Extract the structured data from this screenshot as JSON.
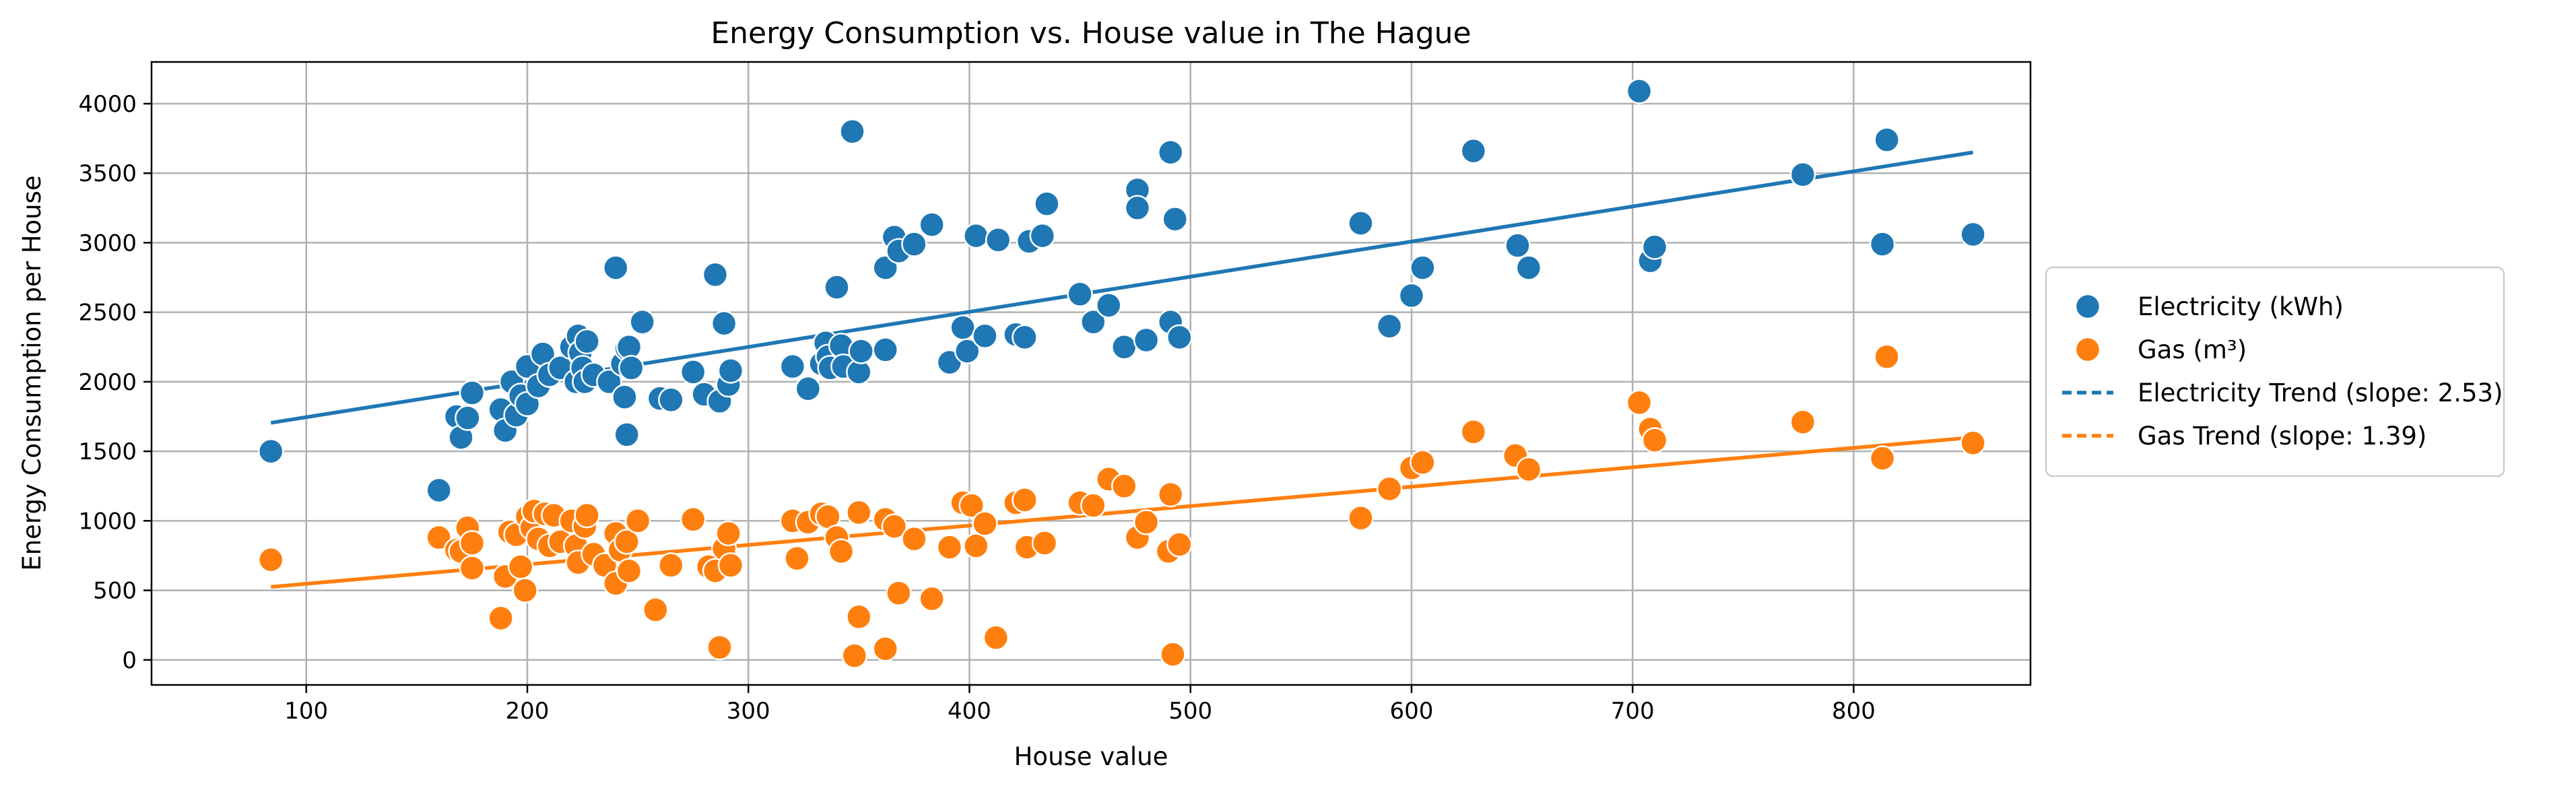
{
  "chart_data": {
    "type": "scatter",
    "title": "Energy Consumption vs. House value in The Hague",
    "xlabel": "House value",
    "ylabel": "Energy Consumption per House",
    "xlim": [
      30,
      880
    ],
    "ylim": [
      -180,
      4300
    ],
    "xticks": [
      100,
      200,
      300,
      400,
      500,
      600,
      700,
      800
    ],
    "yticks": [
      0,
      500,
      1000,
      1500,
      2000,
      2500,
      3000,
      3500,
      4000
    ],
    "grid": true,
    "legend_position": "center-right",
    "series": [
      {
        "name": "Electricity (kWh)",
        "kind": "scatter",
        "color": "#1f77b4",
        "points": [
          [
            84,
            1500
          ],
          [
            160,
            1220
          ],
          [
            168,
            1750
          ],
          [
            170,
            1600
          ],
          [
            173,
            1740
          ],
          [
            175,
            1920
          ],
          [
            188,
            1800
          ],
          [
            190,
            1650
          ],
          [
            193,
            2000
          ],
          [
            195,
            1760
          ],
          [
            197,
            1900
          ],
          [
            200,
            2110
          ],
          [
            200,
            1840
          ],
          [
            205,
            1970
          ],
          [
            207,
            2200
          ],
          [
            210,
            2050
          ],
          [
            215,
            2100
          ],
          [
            220,
            2250
          ],
          [
            222,
            2000
          ],
          [
            223,
            2330
          ],
          [
            224,
            2210
          ],
          [
            225,
            2100
          ],
          [
            226,
            2000
          ],
          [
            227,
            2290
          ],
          [
            230,
            2050
          ],
          [
            237,
            2000
          ],
          [
            240,
            2820
          ],
          [
            243,
            2130
          ],
          [
            244,
            1890
          ],
          [
            245,
            1620
          ],
          [
            245,
            2240
          ],
          [
            246,
            2250
          ],
          [
            247,
            2100
          ],
          [
            252,
            2430
          ],
          [
            260,
            1880
          ],
          [
            265,
            1870
          ],
          [
            275,
            2070
          ],
          [
            280,
            1910
          ],
          [
            285,
            2770
          ],
          [
            287,
            1860
          ],
          [
            289,
            2420
          ],
          [
            291,
            1980
          ],
          [
            292,
            2080
          ],
          [
            320,
            2110
          ],
          [
            327,
            1950
          ],
          [
            333,
            2130
          ],
          [
            335,
            2280
          ],
          [
            336,
            2180
          ],
          [
            337,
            2100
          ],
          [
            340,
            2680
          ],
          [
            342,
            2260
          ],
          [
            343,
            2110
          ],
          [
            347,
            3800
          ],
          [
            350,
            2070
          ],
          [
            351,
            2220
          ],
          [
            362,
            2230
          ],
          [
            362,
            2820
          ],
          [
            366,
            3040
          ],
          [
            368,
            2940
          ],
          [
            375,
            2990
          ],
          [
            383,
            3130
          ],
          [
            391,
            2140
          ],
          [
            397,
            2390
          ],
          [
            399,
            2220
          ],
          [
            403,
            3050
          ],
          [
            407,
            2330
          ],
          [
            413,
            3020
          ],
          [
            421,
            2340
          ],
          [
            425,
            2320
          ],
          [
            427,
            3010
          ],
          [
            433,
            3050
          ],
          [
            435,
            3280
          ],
          [
            450,
            2630
          ],
          [
            456,
            2430
          ],
          [
            463,
            2550
          ],
          [
            470,
            2250
          ],
          [
            476,
            3380
          ],
          [
            476,
            3250
          ],
          [
            480,
            2300
          ],
          [
            491,
            3650
          ],
          [
            491,
            2430
          ],
          [
            493,
            3170
          ],
          [
            495,
            2320
          ],
          [
            577,
            3140
          ],
          [
            590,
            2400
          ],
          [
            600,
            2620
          ],
          [
            605,
            2820
          ],
          [
            628,
            3660
          ],
          [
            648,
            2980
          ],
          [
            653,
            2820
          ],
          [
            703,
            4090
          ],
          [
            708,
            2870
          ],
          [
            710,
            2970
          ],
          [
            777,
            3490
          ],
          [
            813,
            2990
          ],
          [
            815,
            3740
          ],
          [
            854,
            3060
          ]
        ]
      },
      {
        "name": "Gas (m³)",
        "kind": "scatter",
        "color": "#ff7f0e",
        "points": [
          [
            84,
            720
          ],
          [
            160,
            880
          ],
          [
            168,
            790
          ],
          [
            170,
            780
          ],
          [
            173,
            950
          ],
          [
            175,
            840
          ],
          [
            175,
            660
          ],
          [
            188,
            300
          ],
          [
            190,
            600
          ],
          [
            192,
            920
          ],
          [
            195,
            900
          ],
          [
            197,
            670
          ],
          [
            199,
            500
          ],
          [
            200,
            1030
          ],
          [
            202,
            950
          ],
          [
            203,
            1070
          ],
          [
            205,
            870
          ],
          [
            208,
            1050
          ],
          [
            210,
            820
          ],
          [
            212,
            1040
          ],
          [
            215,
            850
          ],
          [
            220,
            1000
          ],
          [
            222,
            820
          ],
          [
            223,
            700
          ],
          [
            226,
            960
          ],
          [
            227,
            1040
          ],
          [
            230,
            760
          ],
          [
            235,
            680
          ],
          [
            240,
            910
          ],
          [
            240,
            550
          ],
          [
            242,
            790
          ],
          [
            245,
            850
          ],
          [
            246,
            640
          ],
          [
            250,
            1000
          ],
          [
            258,
            360
          ],
          [
            265,
            680
          ],
          [
            275,
            1010
          ],
          [
            282,
            670
          ],
          [
            285,
            640
          ],
          [
            287,
            90
          ],
          [
            289,
            800
          ],
          [
            291,
            910
          ],
          [
            292,
            680
          ],
          [
            320,
            1000
          ],
          [
            322,
            730
          ],
          [
            327,
            990
          ],
          [
            333,
            1050
          ],
          [
            336,
            1030
          ],
          [
            340,
            880
          ],
          [
            342,
            780
          ],
          [
            348,
            30
          ],
          [
            350,
            1060
          ],
          [
            350,
            310
          ],
          [
            362,
            80
          ],
          [
            362,
            1010
          ],
          [
            366,
            960
          ],
          [
            368,
            480
          ],
          [
            375,
            870
          ],
          [
            383,
            440
          ],
          [
            391,
            810
          ],
          [
            397,
            1130
          ],
          [
            401,
            1110
          ],
          [
            403,
            820
          ],
          [
            407,
            980
          ],
          [
            412,
            160
          ],
          [
            421,
            1130
          ],
          [
            425,
            1150
          ],
          [
            426,
            810
          ],
          [
            434,
            840
          ],
          [
            450,
            1130
          ],
          [
            456,
            1110
          ],
          [
            463,
            1300
          ],
          [
            470,
            1250
          ],
          [
            476,
            880
          ],
          [
            480,
            990
          ],
          [
            490,
            780
          ],
          [
            491,
            1190
          ],
          [
            492,
            40
          ],
          [
            495,
            830
          ],
          [
            577,
            1020
          ],
          [
            590,
            1230
          ],
          [
            600,
            1380
          ],
          [
            605,
            1420
          ],
          [
            628,
            1640
          ],
          [
            647,
            1470
          ],
          [
            653,
            1370
          ],
          [
            703,
            1850
          ],
          [
            708,
            1660
          ],
          [
            710,
            1580
          ],
          [
            777,
            1710
          ],
          [
            813,
            1450
          ],
          [
            815,
            2180
          ],
          [
            854,
            1560
          ]
        ]
      },
      {
        "name": "Electricity Trend (slope: 2.53)",
        "kind": "trend",
        "color": "#1f77b4",
        "x": [
          84,
          854
        ],
        "y": [
          1705,
          3650
        ]
      },
      {
        "name": "Gas Trend (slope: 1.39)",
        "kind": "trend",
        "color": "#ff7f0e",
        "x": [
          84,
          854
        ],
        "y": [
          525,
          1600
        ]
      }
    ]
  }
}
